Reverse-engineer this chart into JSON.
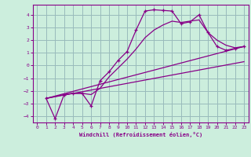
{
  "xlabel": "Windchill (Refroidissement éolien,°C)",
  "bg_color": "#cceedd",
  "line_color": "#880088",
  "grid_color": "#99bbbb",
  "xlim": [
    -0.5,
    23.5
  ],
  "ylim": [
    -4.5,
    4.8
  ],
  "yticks": [
    -4,
    -3,
    -2,
    -1,
    0,
    1,
    2,
    3,
    4
  ],
  "xticks": [
    0,
    1,
    2,
    3,
    4,
    5,
    6,
    7,
    8,
    9,
    10,
    11,
    12,
    13,
    14,
    15,
    16,
    17,
    18,
    19,
    20,
    21,
    22,
    23
  ],
  "line1_x": [
    1,
    2,
    3,
    4,
    5,
    6,
    7,
    8,
    9,
    10,
    11,
    12,
    13,
    14,
    15,
    16,
    17,
    18,
    19,
    20,
    21,
    22,
    23
  ],
  "line1_y": [
    -2.6,
    -4.2,
    -2.3,
    -2.2,
    -2.2,
    -3.2,
    -1.2,
    -0.5,
    0.4,
    1.1,
    2.8,
    4.3,
    4.4,
    4.35,
    4.3,
    3.3,
    3.45,
    4.0,
    2.6,
    1.5,
    1.2,
    1.35,
    1.5
  ],
  "line2_x": [
    1,
    3,
    4,
    5,
    6,
    7,
    8,
    9,
    10,
    11,
    12,
    13,
    14,
    15,
    16,
    17,
    18,
    19,
    20,
    21,
    22,
    23
  ],
  "line2_y": [
    -2.6,
    -2.3,
    -2.2,
    -2.2,
    -2.3,
    -1.8,
    -0.9,
    -0.2,
    0.5,
    1.3,
    2.2,
    2.8,
    3.2,
    3.5,
    3.4,
    3.5,
    3.6,
    2.6,
    2.0,
    1.6,
    1.4,
    1.5
  ],
  "line3_x": [
    1,
    23
  ],
  "line3_y": [
    -2.6,
    1.5
  ],
  "line4_x": [
    1,
    23
  ],
  "line4_y": [
    -2.6,
    0.3
  ]
}
